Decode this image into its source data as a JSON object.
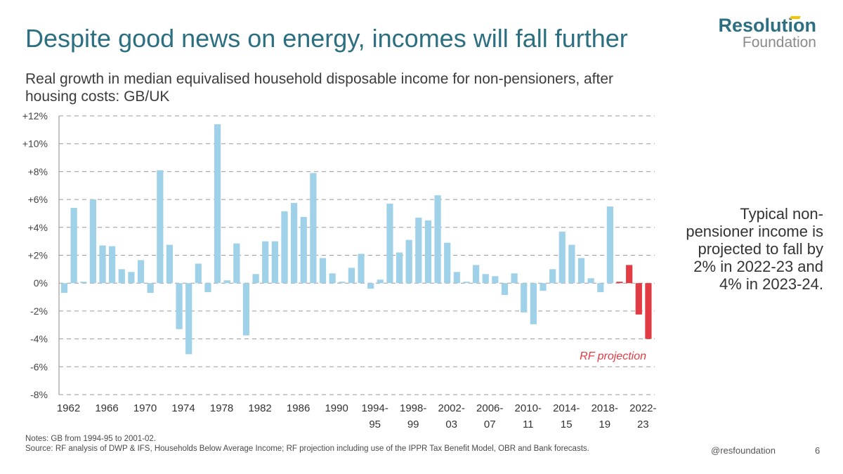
{
  "header": {
    "title": "Despite good news on energy, incomes will fall further",
    "subtitle": "Real growth in median equivalised household disposable income for non-pensioners, after housing costs: GB/UK"
  },
  "logo": {
    "line1": "Resolution",
    "line2": "Foundation",
    "accent_color": "#f2c500"
  },
  "callout": "Typical non-pensioner income is projected to fall by 2% in 2022-23 and 4% in 2023-24.",
  "footer": {
    "notes": "Notes: GB from 1994-95 to 2001-02.",
    "source": "Source: RF analysis of DWP & IFS, Households Below Average Income; RF projection including use of the IPPR Tax Benefit Model, OBR and Bank forecasts.",
    "handle": "@resfoundation",
    "page_number": "6"
  },
  "chart_data": {
    "type": "bar",
    "ylim": [
      -8,
      12
    ],
    "y_ticks": [
      {
        "value": 12,
        "label": "+12%"
      },
      {
        "value": 10,
        "label": "+10%"
      },
      {
        "value": 8,
        "label": "+8%"
      },
      {
        "value": 6,
        "label": "+6%"
      },
      {
        "value": 4,
        "label": "+4%"
      },
      {
        "value": 2,
        "label": "+2%"
      },
      {
        "value": 0,
        "label": "0%"
      },
      {
        "value": -2,
        "label": "-2%"
      },
      {
        "value": -4,
        "label": "-4%"
      },
      {
        "value": -6,
        "label": "-6%"
      },
      {
        "value": -8,
        "label": "-8%"
      }
    ],
    "grid": "horizontal-dashed",
    "x_tick_labels": [
      {
        "index": 0,
        "line1": "1962",
        "line2": ""
      },
      {
        "index": 4,
        "line1": "1966",
        "line2": ""
      },
      {
        "index": 8,
        "line1": "1970",
        "line2": ""
      },
      {
        "index": 12,
        "line1": "1974",
        "line2": ""
      },
      {
        "index": 16,
        "line1": "1978",
        "line2": ""
      },
      {
        "index": 20,
        "line1": "1982",
        "line2": ""
      },
      {
        "index": 24,
        "line1": "1986",
        "line2": ""
      },
      {
        "index": 28,
        "line1": "1990",
        "line2": ""
      },
      {
        "index": 32,
        "line1": "1994-",
        "line2": "95"
      },
      {
        "index": 36,
        "line1": "1998-",
        "line2": "99"
      },
      {
        "index": 40,
        "line1": "2002-",
        "line2": "03"
      },
      {
        "index": 44,
        "line1": "2006-",
        "line2": "07"
      },
      {
        "index": 48,
        "line1": "2010-",
        "line2": "11"
      },
      {
        "index": 52,
        "line1": "2014-",
        "line2": "15"
      },
      {
        "index": 56,
        "line1": "2018-",
        "line2": "19"
      },
      {
        "index": 60,
        "line1": "2022-",
        "line2": "23"
      }
    ],
    "series": [
      {
        "color": "#9fd1e8",
        "values": [
          -0.7,
          5.4,
          0.1,
          6.0,
          2.7,
          2.65,
          1.0,
          0.8,
          1.65,
          -0.7,
          8.1,
          2.75,
          -3.3,
          -5.1,
          1.4,
          -0.65,
          11.4,
          0.2,
          2.85,
          -3.75,
          0.65,
          3.0,
          3.0,
          5.15,
          5.75,
          4.75,
          7.9,
          1.8,
          0.7,
          0.1,
          1.1,
          2.1,
          -0.4,
          0.25,
          5.7,
          2.2,
          3.1,
          4.7,
          4.5,
          6.3,
          2.9,
          0.8,
          0.1,
          1.3,
          0.65,
          0.5,
          -0.85,
          0.7,
          -2.1,
          -2.95,
          -0.55,
          1.0,
          3.7,
          2.75,
          1.8,
          0.35,
          -0.65,
          5.5
        ]
      },
      {
        "name": "RF projection",
        "color": "#e33b44",
        "start_index": 58,
        "values": [
          0.1,
          1.3,
          -2.25,
          -4.0
        ]
      }
    ],
    "annotation": {
      "text": "RF projection",
      "color": "#e33b44"
    }
  }
}
